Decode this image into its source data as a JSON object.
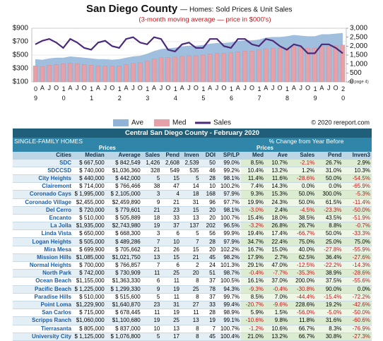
{
  "chart_data": {
    "type": "combo",
    "title": "San Diego County",
    "title_suffix": "— Homes: Sold Prices & Unit Sales",
    "subtitle": "(3-month moving average — price in $000's)",
    "annotation": "on page 4)",
    "source": "© 2020 rereport.com",
    "categories": [
      "09",
      "A",
      "J",
      "O",
      "10",
      "A",
      "J",
      "O",
      "11",
      "A",
      "J",
      "O",
      "12",
      "A",
      "J",
      "O",
      "13",
      "A",
      "J",
      "O",
      "14",
      "A",
      "J",
      "O",
      "15",
      "A",
      "J",
      "O",
      "16",
      "A",
      "J",
      "O",
      "17",
      "A",
      "J",
      "O",
      "18",
      "A",
      "J",
      "O",
      "19",
      "A",
      "J",
      "O",
      "20"
    ],
    "series": [
      {
        "name": "Ave",
        "type": "area",
        "color": "#8fb4d8",
        "values": [
          440,
          430,
          450,
          460,
          460,
          480,
          470,
          460,
          450,
          440,
          440,
          430,
          440,
          460,
          480,
          490,
          520,
          560,
          590,
          600,
          610,
          630,
          640,
          640,
          650,
          670,
          680,
          680,
          690,
          710,
          720,
          720,
          730,
          760,
          770,
          770,
          780,
          800,
          790,
          780,
          780,
          810,
          810,
          820,
          830
        ]
      },
      {
        "name": "Med",
        "type": "bar",
        "color": "#e6a0a8",
        "values": [
          340,
          330,
          350,
          360,
          370,
          380,
          370,
          360,
          350,
          340,
          340,
          335,
          340,
          360,
          375,
          385,
          410,
          440,
          460,
          465,
          470,
          480,
          490,
          490,
          500,
          515,
          525,
          525,
          535,
          550,
          560,
          560,
          575,
          595,
          600,
          600,
          610,
          625,
          615,
          605,
          605,
          630,
          635,
          640,
          650
        ]
      },
      {
        "name": "Sales",
        "type": "line",
        "axis": "y2",
        "color": "#4b2a7a",
        "values": [
          2100,
          2300,
          2400,
          2200,
          1900,
          2400,
          2200,
          1900,
          1800,
          2200,
          2300,
          2000,
          1900,
          2400,
          2500,
          2200,
          2100,
          2500,
          2400,
          1800,
          1700,
          2100,
          2200,
          1900,
          1900,
          2400,
          2400,
          2000,
          1900,
          2400,
          2400,
          2100,
          2000,
          2400,
          2300,
          2000,
          1800,
          2100,
          2000,
          1600,
          1600,
          2100,
          2100,
          1900,
          1600
        ]
      }
    ],
    "ylim": [
      100,
      900
    ],
    "yticks": [
      {
        "value": 100,
        "label": "$100"
      },
      {
        "value": 300,
        "label": "$300"
      },
      {
        "value": 500,
        "label": "$500"
      },
      {
        "value": 700,
        "label": "$700"
      },
      {
        "value": 900,
        "label": "$900"
      }
    ],
    "y2lim": [
      0,
      3000
    ],
    "y2ticks": [
      0,
      500,
      {
        "value": 1000,
        "label": "1,000"
      },
      {
        "value": 1500,
        "label": "1,500"
      },
      {
        "value": 2000,
        "label": "2,000"
      },
      {
        "value": 2500,
        "label": "2,500"
      },
      {
        "value": 3000,
        "label": "3,000"
      }
    ],
    "grid": true
  },
  "table": {
    "title": "Central San Diego County - February 2020",
    "group_left": "SINGLE-FAMILY HOMES",
    "group_right": "% Change from Year Before",
    "prices_left": "Prices",
    "prices_right": "Prices",
    "columns": [
      "Cities",
      "Median",
      "Average",
      "Sales",
      "Pend",
      "Inven",
      "DOI",
      "SP/LP",
      "Med",
      "Ave",
      "Sales",
      "Pend",
      "Inven3"
    ],
    "rows": [
      [
        "SDC",
        "$ 667,500",
        "$ 842,549",
        "1,426",
        "2,608",
        "2,539",
        "50",
        "99.0%",
        "8.5%",
        "10.7%",
        "-2.1%",
        "26.7%",
        "2.9%"
      ],
      [
        "SDCCSD",
        "$ 740,000",
        "$1,036,360",
        "328",
        "549",
        "535",
        "46",
        "99.2%",
        "10.4%",
        "13.2%",
        "1.2%",
        "31.0%",
        "10.3%"
      ],
      [
        "City Heights",
        "$ 440,000",
        "$ 442,000",
        "5",
        "15",
        "5",
        "28",
        "98.1%",
        "11.4%",
        "11.6%",
        "-28.6%",
        "50.0%",
        "-54.5%"
      ],
      [
        "Clairemont",
        "$ 714,000",
        "$ 766,466",
        "38",
        "47",
        "14",
        "10",
        "100.2%",
        "7.4%",
        "14.3%",
        "0.0%",
        "0.0%",
        "-65.9%"
      ],
      [
        "Coronado Cays",
        "$ 1,995,000",
        "$ 2,105,000",
        "3",
        "4",
        "18",
        "168",
        "97.9%",
        "9.3%",
        "15.3%",
        "50.0%",
        "300.0%",
        "-5.3%"
      ],
      [
        "Coronado Village",
        "$2,455,000",
        "$2,459,890",
        "9",
        "21",
        "31",
        "96",
        "97.7%",
        "19.9%",
        "24.3%",
        "50.0%",
        "61.5%",
        "-11.4%"
      ],
      [
        "Del Cerro",
        "$ 720,000",
        "$ 779,601",
        "21",
        "23",
        "15",
        "20",
        "98.1%",
        "-3.0%",
        "2.4%",
        "-4.5%",
        "-23.3%",
        "-50.0%"
      ],
      [
        "Encanto",
        "$ 510,000",
        "$ 505,889",
        "18",
        "33",
        "13",
        "20",
        "100.7%",
        "15.4%",
        "18.0%",
        "38.5%",
        "43.5%",
        "-51.9%"
      ],
      [
        "La Jolla",
        "$1,935,000",
        "$2,743,980",
        "19",
        "37",
        "137",
        "202",
        "96.5%",
        "-3.2%",
        "26.8%",
        "26.7%",
        "8.8%",
        "-0.7%"
      ],
      [
        "Linda Vista",
        "$ 650,000",
        "$ 668,300",
        "3",
        "6",
        "5",
        "56",
        "99.9%",
        "19.4%",
        "17.4%",
        "-66.7%",
        "50.0%",
        "-33.3%"
      ],
      [
        "Logan Heights",
        "$ 505,000",
        "$ 489,286",
        "7",
        "10",
        "7",
        "28",
        "97.9%",
        "34.7%",
        "22.4%",
        "75.0%",
        "25.0%",
        "75.0%"
      ],
      [
        "Mira Mesa",
        "$ 699,900",
        "$ 705,662",
        "21",
        "26",
        "15",
        "20",
        "102.2%",
        "16.7%",
        "15.0%",
        "40.0%",
        "-27.8%",
        "-55.9%"
      ],
      [
        "Mission Hills",
        "$1,085,000",
        "$1,021,750",
        "13",
        "15",
        "21",
        "45",
        "98.2%",
        "17.9%",
        "2.7%",
        "62.5%",
        "36.4%",
        "-27.6%"
      ],
      [
        "Normal Heights",
        "$ 700,000",
        "$ 766,857",
        "7",
        "6",
        "2",
        "24",
        "101.3%",
        "29.1%",
        "47.0%",
        "-12.5%",
        "-22.2%",
        "-14.3%"
      ],
      [
        "North Park",
        "$ 742,000",
        "$ 730,909",
        "11",
        "25",
        "20",
        "51",
        "98.7%",
        "-0.4%",
        "-7.7%",
        "-35.3%",
        "38.9%",
        "-28.6%"
      ],
      [
        "Ocean Beach",
        "$1,155,000",
        "$1,363,330",
        "6",
        "11",
        "8",
        "37",
        "100.5%",
        "16.1%",
        "37.0%",
        "200.0%",
        "37.5%",
        "-55.6%"
      ],
      [
        "Pacific Beach",
        "$ 1,225,000",
        "$ 1,299,330",
        "9",
        "19",
        "25",
        "78",
        "94.3%",
        "-9.3%",
        "-0.4%",
        "-30.8%",
        "90.0%",
        "0.0%"
      ],
      [
        "Paradise Hills",
        "$ 510,000",
        "$ 515,600",
        "5",
        "11",
        "8",
        "37",
        "99.7%",
        "8.5%",
        "7.0%",
        "-44.4%",
        "-15.4%",
        "-72.2%"
      ],
      [
        "Point Loma",
        "$1,229,900",
        "$1,640,870",
        "23",
        "31",
        "27",
        "33",
        "99.4%",
        "-20.7%",
        "-9.6%",
        "228.6%",
        "19.2%",
        "-42.6%"
      ],
      [
        "San Carlos",
        "$ 715,000",
        "$ 678,445",
        "11",
        "19",
        "11",
        "28",
        "98.9%",
        "5.9%",
        "1.5%",
        "-56.0%",
        "-5.0%",
        "-50.0%"
      ],
      [
        "Scripps Ranch",
        "$1,060,000",
        "$1,100,680",
        "19",
        "25",
        "13",
        "19",
        "99.1%",
        "-10.6%",
        "9.8%",
        "11.8%",
        "31.6%",
        "-60.6%"
      ],
      [
        "Tierrasanta",
        "$ 805,000",
        "$ 837,000",
        "10",
        "13",
        "8",
        "7",
        "100.7%",
        "-1.2%",
        "10.6%",
        "66.7%",
        "8.3%",
        "-76.9%"
      ],
      [
        "University City",
        "$ 1,125,000",
        "$ 1,076,800",
        "5",
        "17",
        "8",
        "45",
        "100.4%",
        "21.0%",
        "13.2%",
        "66.7%",
        "30.8%",
        "-27.3%"
      ]
    ]
  }
}
